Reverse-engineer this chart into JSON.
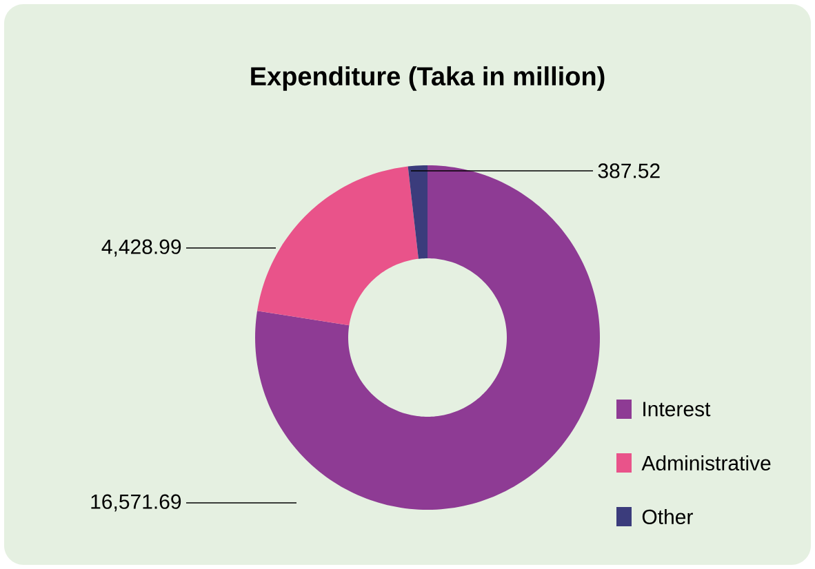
{
  "chart_data": {
    "type": "donut",
    "title": "Expenditure (Taka in million)",
    "categories": [
      "Interest",
      "Administrative",
      "Other"
    ],
    "values": [
      16571.69,
      4428.99,
      387.52
    ],
    "colors": [
      "#8e3b94",
      "#e9538a",
      "#3b3c7c"
    ],
    "value_labels": [
      "16,571.69",
      "4,428.99",
      "387.52"
    ],
    "legend": "bottom right"
  }
}
